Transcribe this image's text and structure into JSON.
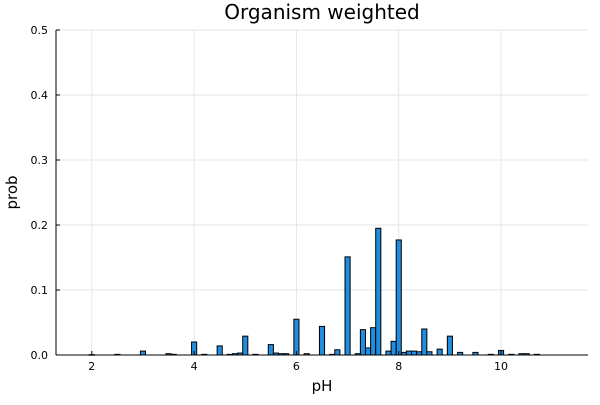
{
  "chart_data": {
    "type": "bar",
    "title": "Organism weighted",
    "xlabel": "pH",
    "ylabel": "prob",
    "xlim": [
      1.3,
      11.7
    ],
    "ylim": [
      0,
      0.5
    ],
    "xticks": [
      2,
      4,
      6,
      8,
      10
    ],
    "xtick_labels": [
      "2",
      "4",
      "6",
      "8",
      "10"
    ],
    "yticks": [
      0.0,
      0.1,
      0.2,
      0.3,
      0.4,
      0.5
    ],
    "ytick_labels": [
      "0.0",
      "0.1",
      "0.2",
      "0.3",
      "0.4",
      "0.5"
    ],
    "grid": true,
    "bar_width": 0.1,
    "bar_color": "#1f8ee0",
    "x": [
      2.0,
      2.5,
      3.0,
      3.5,
      3.6,
      4.0,
      4.2,
      4.5,
      4.7,
      4.8,
      4.9,
      5.0,
      5.2,
      5.5,
      5.6,
      5.7,
      5.8,
      6.0,
      6.2,
      6.5,
      6.7,
      6.8,
      7.0,
      7.2,
      7.3,
      7.4,
      7.5,
      7.6,
      7.8,
      7.9,
      8.0,
      8.1,
      8.2,
      8.3,
      8.4,
      8.5,
      8.6,
      8.8,
      9.0,
      9.2,
      9.5,
      9.8,
      10.0,
      10.2,
      10.4,
      10.5,
      10.7
    ],
    "values": [
      0.0005,
      0.001,
      0.006,
      0.002,
      0.001,
      0.02,
      0.001,
      0.014,
      0.001,
      0.002,
      0.003,
      0.029,
      0.001,
      0.016,
      0.003,
      0.002,
      0.002,
      0.055,
      0.002,
      0.044,
      0.001,
      0.008,
      0.151,
      0.002,
      0.039,
      0.011,
      0.042,
      0.195,
      0.006,
      0.021,
      0.177,
      0.004,
      0.006,
      0.006,
      0.005,
      0.04,
      0.005,
      0.009,
      0.029,
      0.004,
      0.004,
      0.001,
      0.007,
      0.001,
      0.002,
      0.002,
      0.001
    ]
  }
}
